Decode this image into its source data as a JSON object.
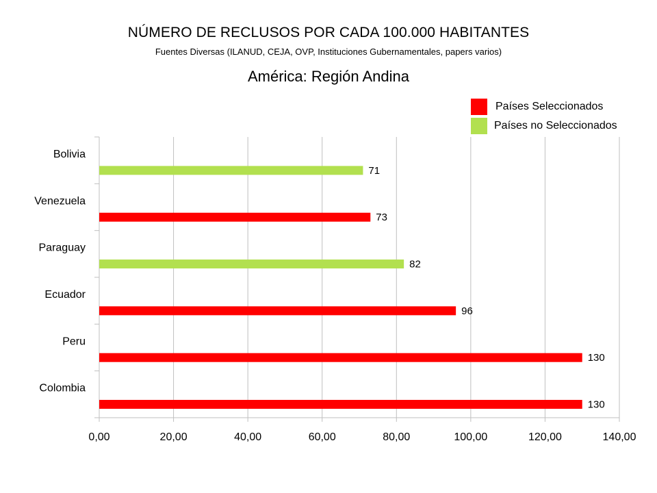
{
  "header": {
    "title": "NÚMERO DE RECLUSOS POR CADA 100.000 HABITANTES",
    "subtitle": "Fuentes Diversas (ILANUD, CEJA, OVP, Instituciones Gubernamentales, papers varios)",
    "region": "América: Región Andina"
  },
  "legend": {
    "placement": "top-right",
    "items": [
      {
        "label": "Países Seleccionados",
        "color": "#ff0000"
      },
      {
        "label": "Países no Seleccionados",
        "color": "#b2e04f"
      }
    ]
  },
  "chart_data": {
    "type": "bar",
    "orientation": "horizontal",
    "title": "NÚMERO DE RECLUSOS POR CADA 100.000 HABITANTES",
    "subtitle": "Fuentes Diversas (ILANUD, CEJA, OVP, Instituciones Gubernamentales, papers varios)",
    "categories": [
      "Bolivia",
      "Venezuela",
      "Paraguay",
      "Ecuador",
      "Peru",
      "Colombia"
    ],
    "values": [
      71,
      73,
      82,
      96,
      130,
      130
    ],
    "value_labels": [
      "71",
      "73",
      "82",
      "96",
      "130",
      "130"
    ],
    "bar_groups": [
      "no_seleccionado",
      "seleccionado",
      "no_seleccionado",
      "seleccionado",
      "seleccionado",
      "seleccionado"
    ],
    "group_colors": {
      "seleccionado": "#ff0000",
      "no_seleccionado": "#b2e04f"
    },
    "xlim": [
      0,
      140
    ],
    "xticks": [
      0,
      20,
      40,
      60,
      80,
      100,
      120,
      140
    ],
    "xtick_labels": [
      "0,00",
      "20,00",
      "40,00",
      "60,00",
      "80,00",
      "100,00",
      "120,00",
      "140,00"
    ],
    "grid": true,
    "xlabel": "",
    "ylabel": ""
  }
}
